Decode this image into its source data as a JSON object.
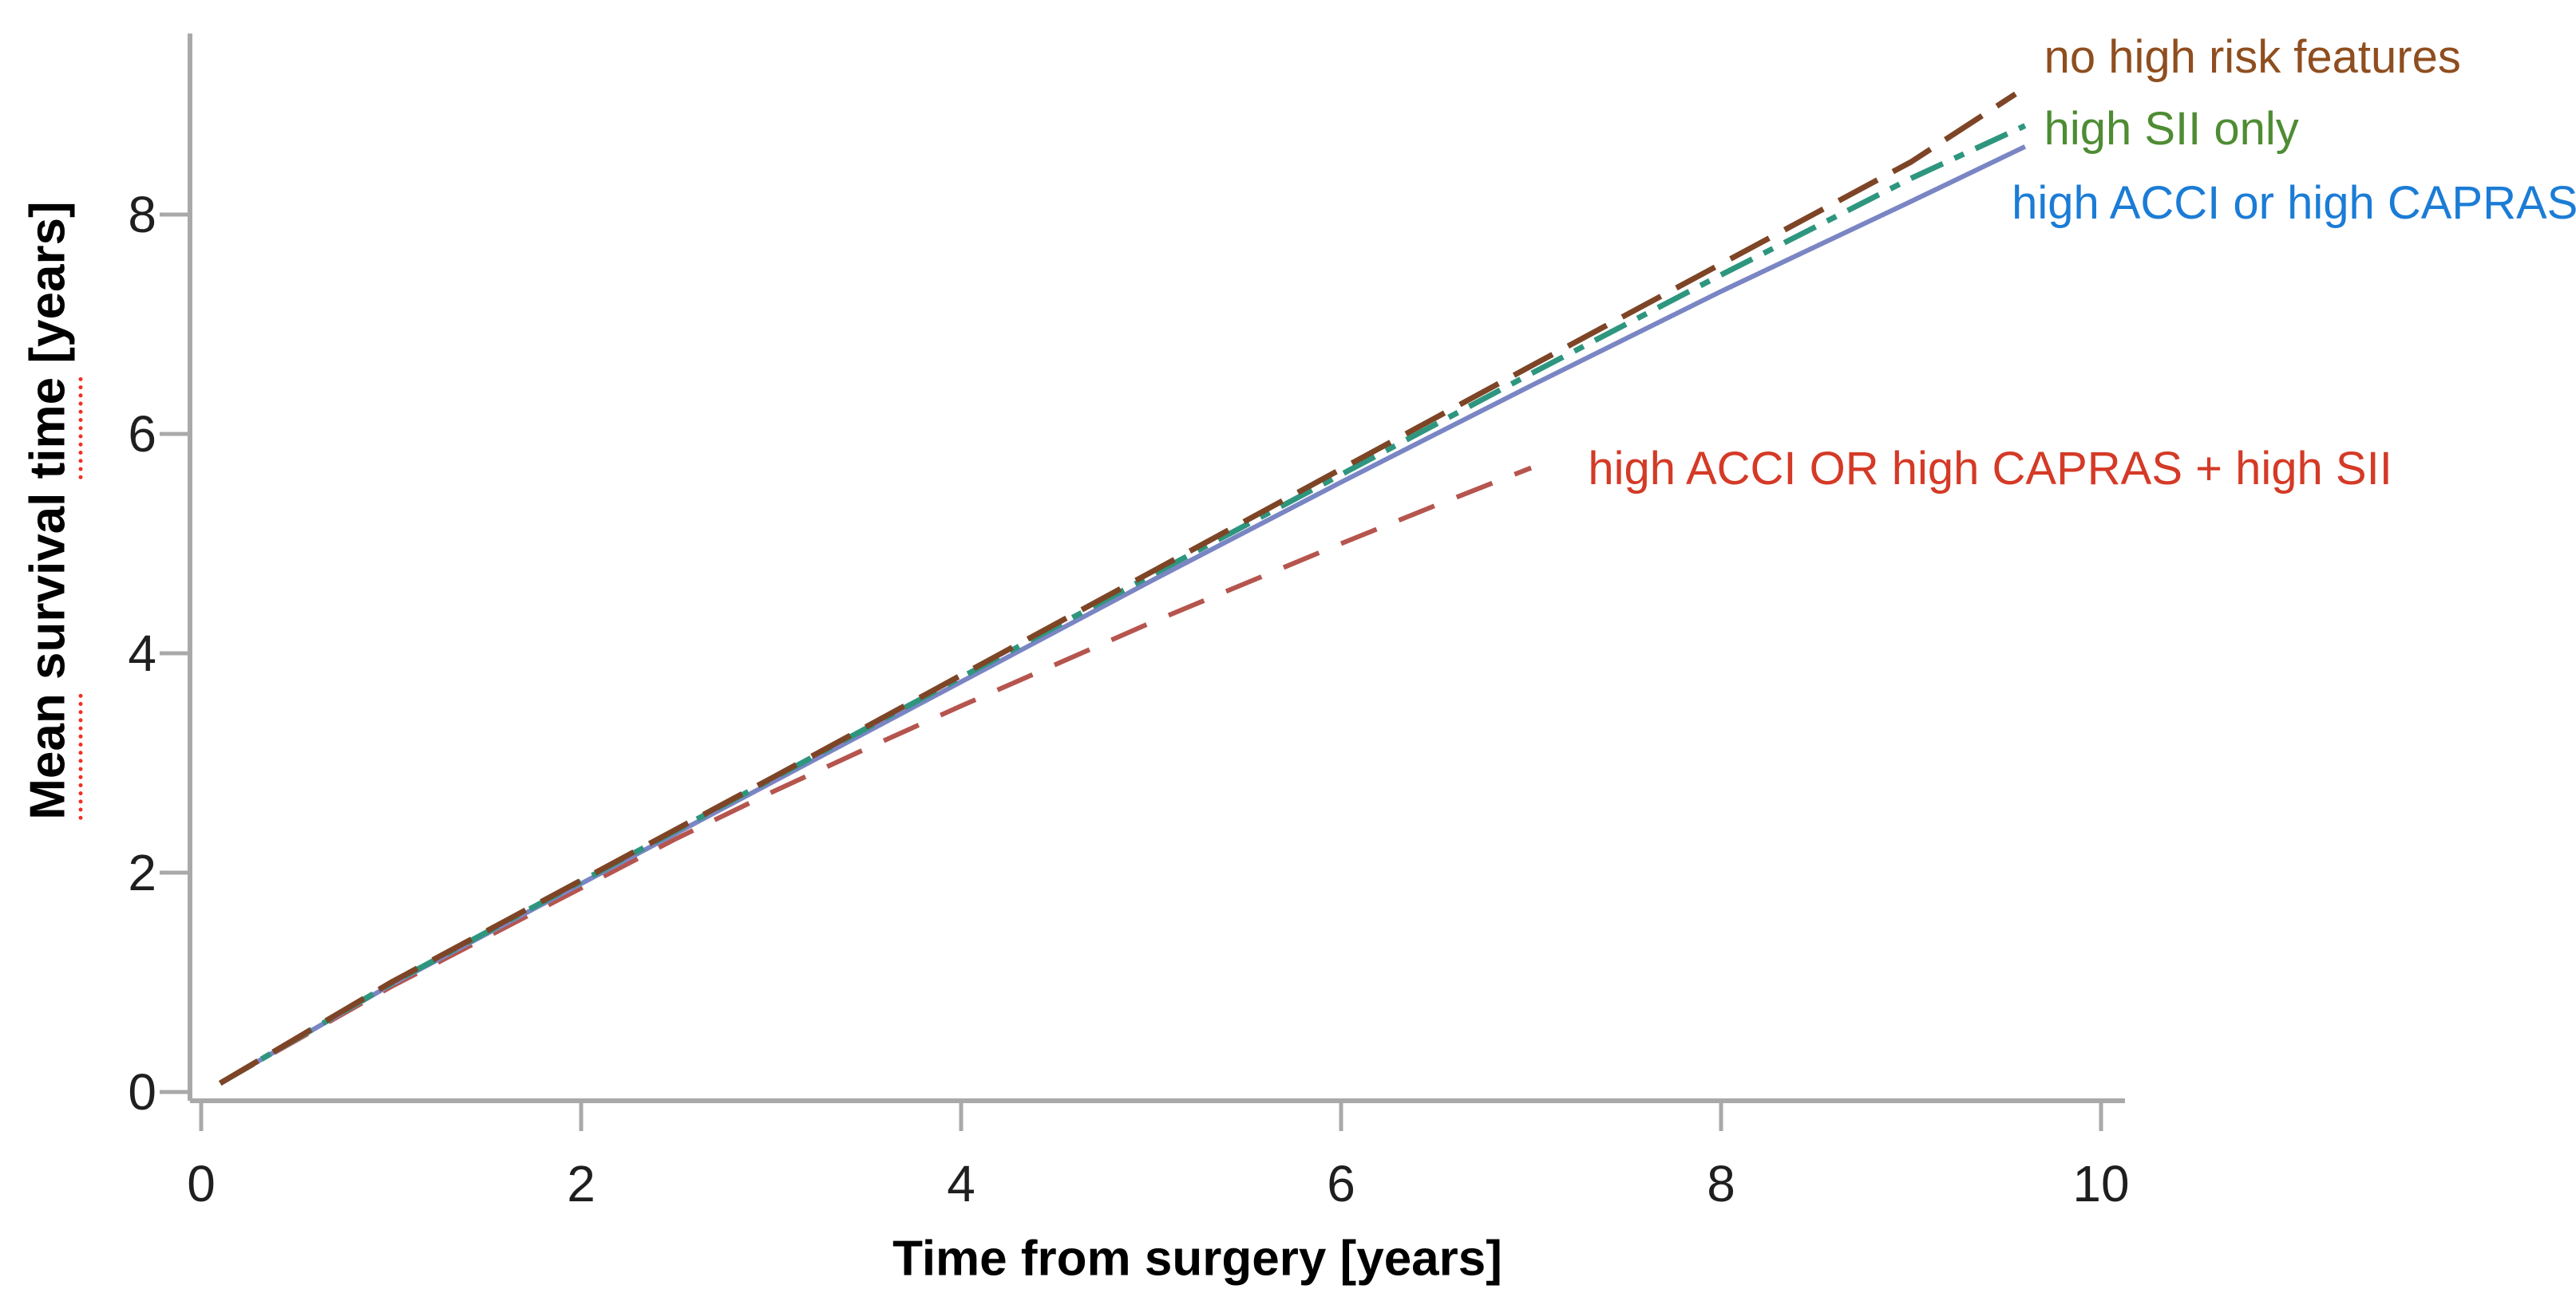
{
  "page": {
    "background": "#ffffff"
  },
  "chart_data": {
    "type": "line",
    "title": "",
    "xlabel": "Time from surgery [years]",
    "ylabel": "Mean survival time [years]",
    "ylabel_spellcheck_words": [
      "Mean",
      "time"
    ],
    "xlim": [
      0,
      10.1
    ],
    "ylim": [
      0,
      9.65
    ],
    "xticks": [
      0,
      2,
      4,
      6,
      8,
      10
    ],
    "yticks": [
      0,
      2,
      4,
      6,
      8
    ],
    "grid": false,
    "axis_color": "#a9a9a9",
    "tick_label_color": "#1f1f1f",
    "spellcheck_color": "#f03022",
    "legend_position": "labels-at-line-ends",
    "series": [
      {
        "name": "no high risk features",
        "label_color": "#8f4e1f",
        "line_color": "#7d4526",
        "line_style": "long-dash",
        "label_anchor": {
          "x": 9.7,
          "y": 9.43
        },
        "points": [
          [
            0.1,
            0.08
          ],
          [
            1,
            1.0
          ],
          [
            2,
            1.93
          ],
          [
            3,
            2.86
          ],
          [
            4,
            3.8
          ],
          [
            5,
            4.74
          ],
          [
            6,
            5.68
          ],
          [
            7,
            6.62
          ],
          [
            8,
            7.55
          ],
          [
            9,
            8.48
          ],
          [
            9.55,
            9.1
          ]
        ]
      },
      {
        "name": "high SII only",
        "label_color": "#4e8c33",
        "line_color": "#2e967e",
        "line_style": "dash-dot",
        "label_anchor": {
          "x": 9.7,
          "y": 8.78
        },
        "points": [
          [
            0.1,
            0.08
          ],
          [
            1,
            0.99
          ],
          [
            2,
            1.92
          ],
          [
            3,
            2.85
          ],
          [
            4,
            3.78
          ],
          [
            5,
            4.71
          ],
          [
            6,
            5.63
          ],
          [
            7,
            6.55
          ],
          [
            8,
            7.45
          ],
          [
            9,
            8.33
          ],
          [
            9.6,
            8.81
          ]
        ]
      },
      {
        "name": "high ACCI or high CAPRAS",
        "label_color": "#1b7cd6",
        "line_color": "#7a85c4",
        "line_style": "solid",
        "label_anchor": {
          "x": 9.53,
          "y": 8.1
        },
        "points": [
          [
            0.1,
            0.08
          ],
          [
            1,
            0.98
          ],
          [
            2,
            1.9
          ],
          [
            3,
            2.82
          ],
          [
            4,
            3.74
          ],
          [
            5,
            4.66
          ],
          [
            6,
            5.56
          ],
          [
            7,
            6.44
          ],
          [
            8,
            7.3
          ],
          [
            9,
            8.12
          ],
          [
            9.6,
            8.62
          ]
        ]
      },
      {
        "name": "high ACCI OR high CAPRAS + high SII",
        "label_color": "#d43a26",
        "line_color": "#b5554e",
        "line_style": "dash",
        "label_anchor": {
          "x": 7.3,
          "y": 5.68
        },
        "points": [
          [
            0.1,
            0.08
          ],
          [
            1,
            0.96
          ],
          [
            2,
            1.86
          ],
          [
            2.5,
            2.31
          ],
          [
            3,
            2.73
          ],
          [
            3.5,
            3.13
          ],
          [
            4,
            3.52
          ],
          [
            4.5,
            3.9
          ],
          [
            5,
            4.28
          ],
          [
            5.5,
            4.64
          ],
          [
            6,
            5.0
          ],
          [
            6.5,
            5.35
          ],
          [
            7,
            5.69
          ]
        ]
      }
    ]
  }
}
